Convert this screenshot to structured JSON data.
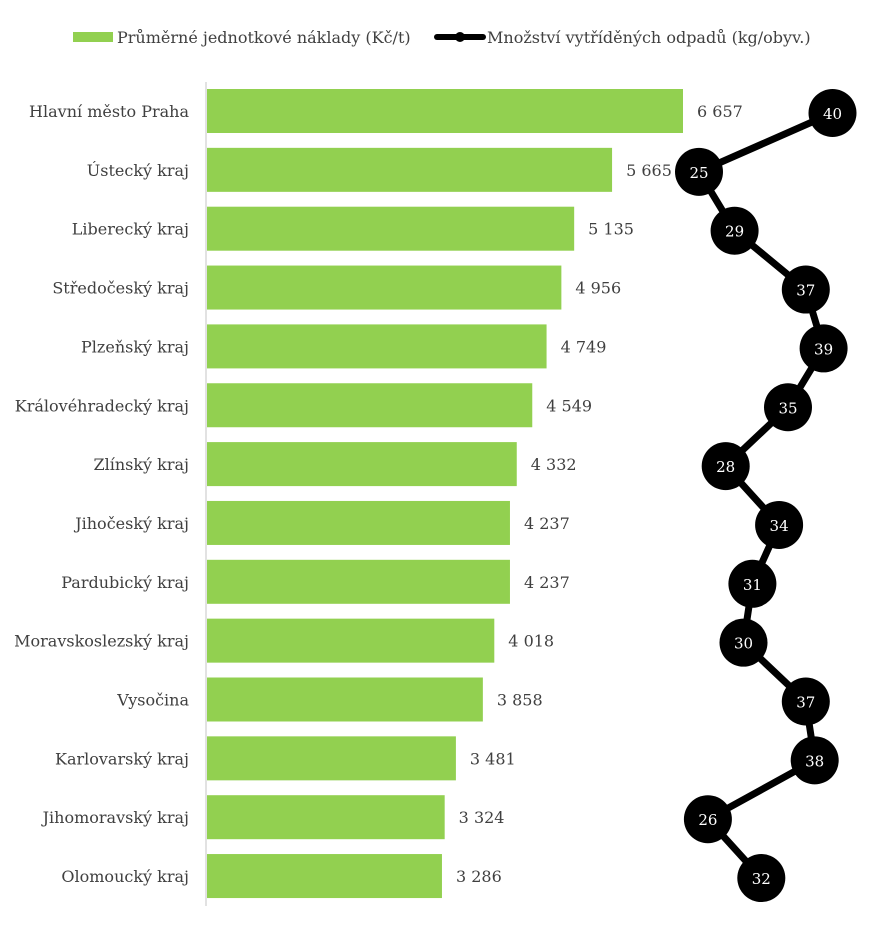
{
  "chart_data": {
    "type": "bar",
    "orientation": "horizontal",
    "categories": [
      "Hlavní město Praha",
      "Ústecký kraj",
      "Liberecký kraj",
      "Středočeský kraj",
      "Plzeňský kraj",
      "Královéhradecký kraj",
      "Zlínský kraj",
      "Jihočeský kraj",
      "Pardubický kraj",
      "Moravskoslezský kraj",
      "Vysočina",
      "Karlovarský kraj",
      "Jihomoravský kraj",
      "Olomoucký kraj"
    ],
    "series": [
      {
        "name": "Průměrné jednotkové náklady (Kč/t)",
        "type": "bar",
        "color": "#92d050",
        "values": [
          6657,
          5665,
          5135,
          4956,
          4749,
          4549,
          4332,
          4237,
          4237,
          4018,
          3858,
          3481,
          3324,
          3286
        ],
        "labels": [
          "6 657",
          "5 665",
          "5 135",
          "4 956",
          "4 749",
          "4 549",
          "4 332",
          "4 237",
          "4 237",
          "4 018",
          "3 858",
          "3 481",
          "3 324",
          "3 286"
        ]
      },
      {
        "name": "Množství vytříděných odpadů (kg/obyv.)",
        "type": "line",
        "color": "#000000",
        "values": [
          40,
          25,
          29,
          37,
          39,
          35,
          28,
          34,
          31,
          30,
          37,
          38,
          26,
          32
        ]
      }
    ],
    "legend_position": "top",
    "grid": false
  }
}
